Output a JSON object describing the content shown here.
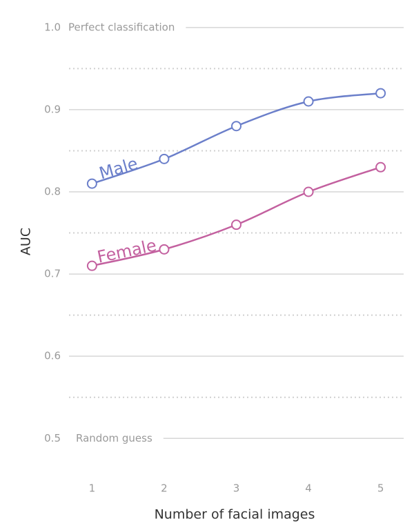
{
  "chart_data": {
    "type": "line",
    "x_label": "Number of facial images",
    "y_label": "AUC",
    "x": [
      1,
      2,
      3,
      4,
      5
    ],
    "xlim": [
      0.7,
      5.3
    ],
    "xticks": [
      1,
      2,
      3,
      4,
      5
    ],
    "ylim": [
      0.47,
      1.02
    ],
    "yticks": [
      {
        "value": 1,
        "label": "1.0"
      },
      0.9,
      0.8,
      0.7,
      0.6,
      0.5
    ],
    "minor_yticks": [
      0.95,
      0.85,
      0.75,
      0.65,
      0.55
    ],
    "grid": true,
    "annotations": [
      {
        "text": "Perfect classification",
        "y": 1
      },
      {
        "text": "Random guess",
        "y": 0.5
      }
    ],
    "series": [
      {
        "name": "Male",
        "color": "#6b7fca",
        "values": [
          0.81,
          0.84,
          0.88,
          0.91,
          0.92
        ]
      },
      {
        "name": "Female",
        "color": "#c3609f",
        "values": [
          0.71,
          0.73,
          0.76,
          0.8,
          0.83
        ]
      }
    ]
  }
}
